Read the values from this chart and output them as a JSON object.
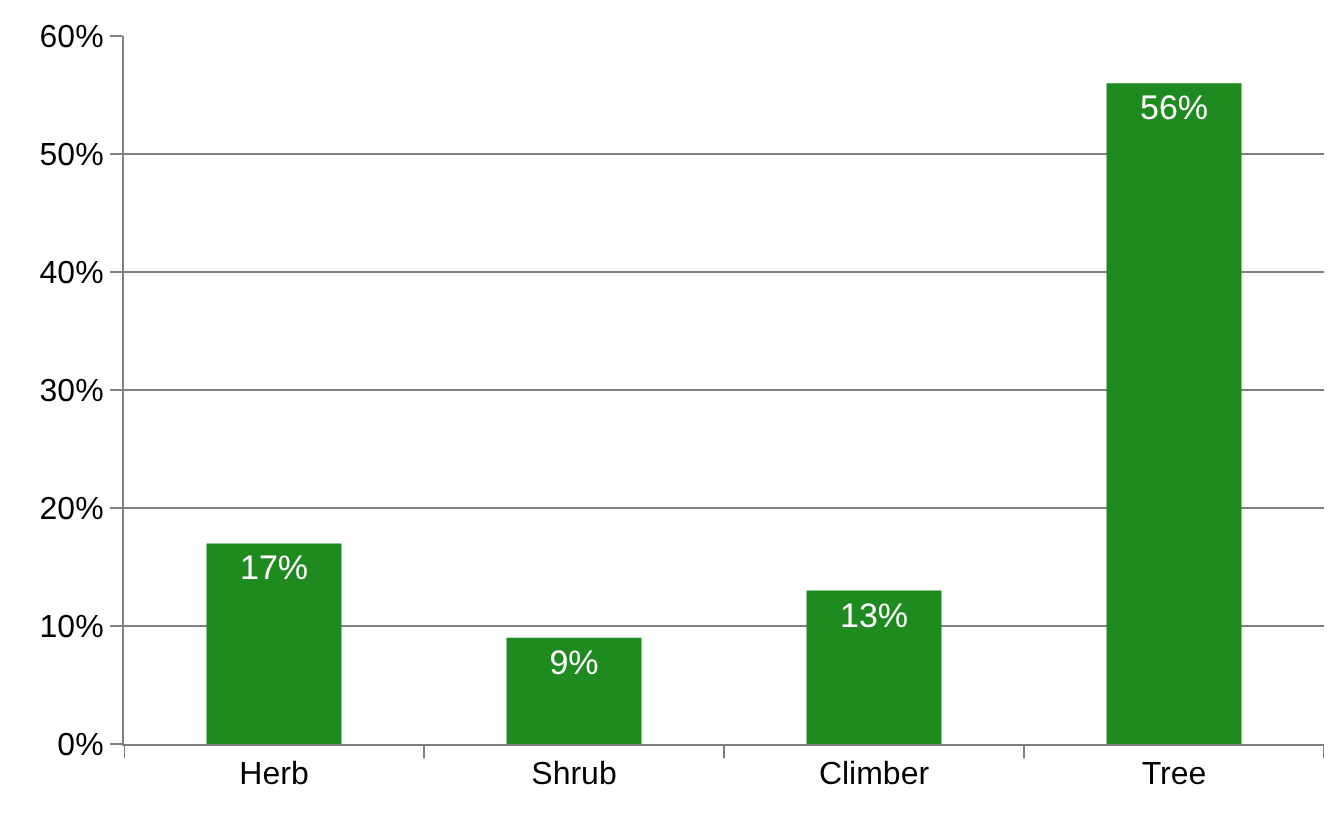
{
  "chart_data": {
    "type": "bar",
    "categories": [
      "Herb",
      "Shrub",
      "Climber",
      "Tree"
    ],
    "values": [
      17,
      9,
      13,
      56
    ],
    "color": "#1f8a1f",
    "value_labels": [
      "17%",
      "9%",
      "13%",
      "56%"
    ],
    "ylim": [
      0,
      60
    ],
    "yticks": [
      {
        "value": 0,
        "label": "0%"
      },
      {
        "value": 10,
        "label": "10%"
      },
      {
        "value": 20,
        "label": "20%"
      },
      {
        "value": 30,
        "label": "30%"
      },
      {
        "value": 40,
        "label": "40%"
      },
      {
        "value": 50,
        "label": "50%"
      },
      {
        "value": 60,
        "label": "60%"
      }
    ],
    "grid": "y"
  }
}
